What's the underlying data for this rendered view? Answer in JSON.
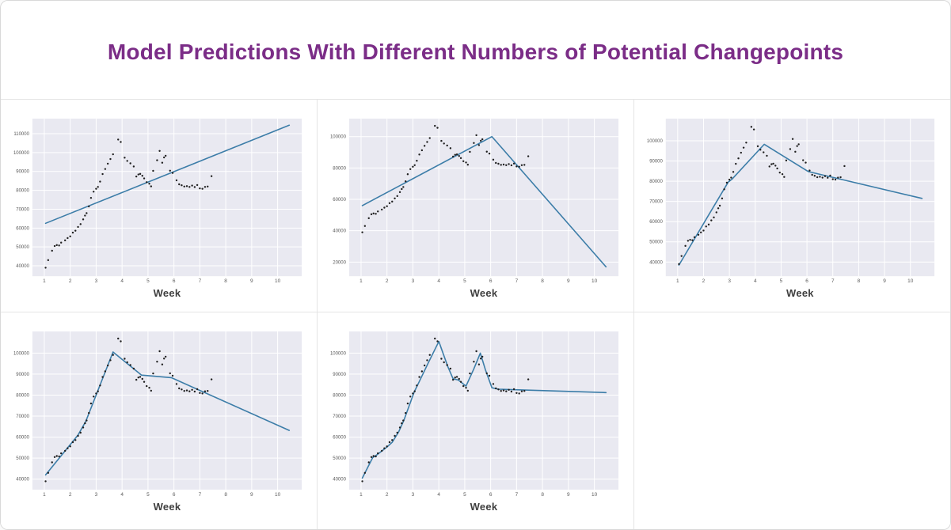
{
  "page": {
    "title": "Model Predictions With Different Numbers of Potential Changepoints"
  },
  "colors": {
    "title": "#7b2d87",
    "plot_bg": "#e9e9f1",
    "grid": "#ffffff",
    "trend_line": "#3c7da8",
    "scatter_dot": "#1f1f1f",
    "tick_label": "#5a5a5a",
    "axis_label": "#3f3f3f",
    "panel_border": "#e4e4e4"
  },
  "chart_data": {
    "type": "scatter",
    "title": "Model Predictions With Different Numbers of Potential Changepoints",
    "xlabel": "Week",
    "ylabel": "",
    "legend": "none",
    "grid": "on",
    "xticks": [
      1,
      2,
      3,
      4,
      5,
      6,
      7,
      8,
      9,
      10
    ],
    "xlim": [
      0.54,
      10.93
    ],
    "scatter": {
      "week": [
        1.05,
        1.15,
        1.3,
        1.4,
        1.48,
        1.57,
        1.65,
        1.8,
        1.9,
        2.0,
        2.1,
        2.2,
        2.3,
        2.4,
        2.5,
        2.57,
        2.63,
        2.72,
        2.8,
        2.9,
        3.0,
        3.07,
        3.15,
        3.25,
        3.35,
        3.45,
        3.55,
        3.65,
        3.85,
        3.95,
        4.1,
        4.2,
        4.32,
        4.45,
        4.55,
        4.63,
        4.7,
        4.78,
        4.85,
        4.95,
        5.05,
        5.12,
        5.2,
        5.35,
        5.45,
        5.55,
        5.62,
        5.68,
        5.85,
        5.95,
        6.1,
        6.2,
        6.3,
        6.4,
        6.5,
        6.6,
        6.7,
        6.8,
        6.9,
        7.0,
        7.1,
        7.2,
        7.3,
        7.45
      ],
      "value": [
        39000,
        43000,
        48000,
        50500,
        51000,
        50800,
        52300,
        53500,
        54700,
        55600,
        57600,
        58600,
        60600,
        62100,
        64600,
        66600,
        67900,
        71500,
        76000,
        79300,
        80800,
        81800,
        84600,
        88600,
        91300,
        94100,
        96600,
        99100,
        106900,
        105600,
        97300,
        95600,
        94300,
        92600,
        87300,
        88400,
        88700,
        87700,
        86300,
        84300,
        83500,
        82100,
        90300,
        95900,
        100900,
        94600,
        97400,
        98300,
        90400,
        89200,
        85300,
        83200,
        82700,
        82000,
        82200,
        81800,
        82500,
        81700,
        82800,
        81000,
        80800,
        81800,
        82000,
        87500
      ]
    },
    "panels": [
      {
        "id": "panel-1",
        "ylim": [
          34500,
          118000
        ],
        "yticks": [
          40000,
          50000,
          60000,
          70000,
          80000,
          90000,
          100000,
          110000
        ],
        "trend": {
          "week": [
            1.05,
            10.45
          ],
          "value": [
            62500,
            114500
          ]
        }
      },
      {
        "id": "panel-2",
        "ylim": [
          11000,
          111500
        ],
        "yticks": [
          20000,
          40000,
          60000,
          80000,
          100000
        ],
        "trend": {
          "week": [
            1.05,
            6.05,
            10.45
          ],
          "value": [
            56000,
            100000,
            17000
          ]
        }
      },
      {
        "id": "panel-3",
        "ylim": [
          33000,
          111000
        ],
        "yticks": [
          40000,
          50000,
          60000,
          70000,
          80000,
          90000,
          100000
        ],
        "trend": {
          "week": [
            1.05,
            2.95,
            3.1,
            4.35,
            6.05,
            10.45
          ],
          "value": [
            38500,
            79500,
            81000,
            98300,
            84800,
            71500
          ]
        }
      },
      {
        "id": "panel-4",
        "ylim": [
          35000,
          110300
        ],
        "yticks": [
          40000,
          50000,
          60000,
          70000,
          80000,
          90000,
          100000
        ],
        "trend": {
          "week": [
            1.05,
            2.3,
            2.6,
            3.65,
            4.75,
            5.9,
            10.45
          ],
          "value": [
            42000,
            61000,
            67500,
            100500,
            89500,
            88300,
            63200
          ]
        }
      },
      {
        "id": "panel-5",
        "ylim": [
          35000,
          110300
        ],
        "yticks": [
          40000,
          50000,
          60000,
          70000,
          80000,
          90000,
          100000
        ],
        "trend": {
          "week": [
            1.05,
            1.45,
            1.6,
            2.0,
            2.2,
            2.45,
            2.65,
            3.05,
            3.25,
            3.6,
            4.0,
            4.35,
            4.55,
            4.75,
            5.05,
            5.35,
            5.6,
            5.8,
            6.05,
            6.3,
            10.45
          ],
          "value": [
            40500,
            50300,
            51500,
            55300,
            57500,
            62500,
            68000,
            81500,
            86500,
            95500,
            105500,
            93500,
            87800,
            87200,
            84300,
            92500,
            100000,
            92000,
            83500,
            82800,
            81200
          ]
        }
      }
    ]
  }
}
